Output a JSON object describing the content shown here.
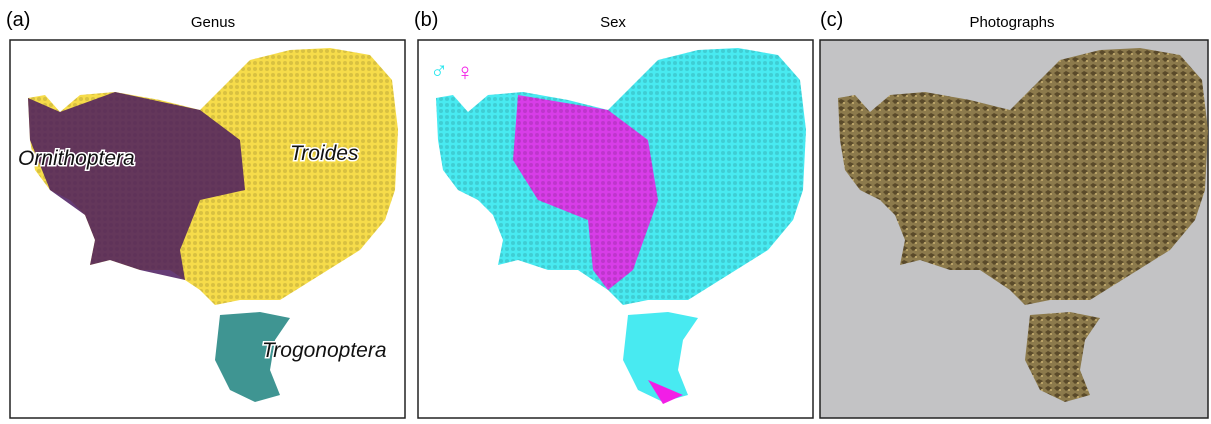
{
  "panels": [
    {
      "letter": "(a)",
      "title": "Genus",
      "annotations": [
        "Ornithoptera",
        "Troides",
        "Trogonoptera"
      ]
    },
    {
      "letter": "(b)",
      "title": "Sex",
      "legend": [
        "♂",
        "♀"
      ]
    },
    {
      "letter": "(c)",
      "title": "Photographs"
    }
  ]
}
